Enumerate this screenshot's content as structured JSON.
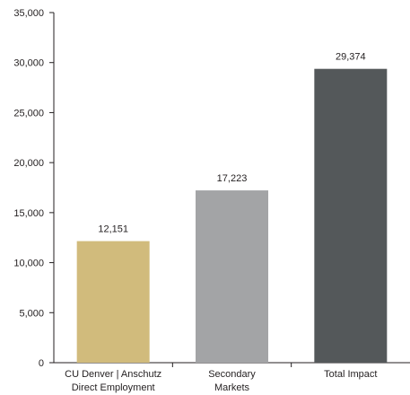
{
  "chart_data": {
    "type": "bar",
    "categories": [
      [
        "CU Denver | Anschutz",
        "Direct Employment"
      ],
      [
        "Secondary",
        "Markets"
      ],
      [
        "Total Impact"
      ]
    ],
    "values": [
      12151,
      17223,
      29374
    ],
    "data_labels": [
      "12,151",
      "17,223",
      "29,374"
    ],
    "bar_colors": [
      "#d1bb7c",
      "#a3a4a6",
      "#54585a"
    ],
    "ylim": [
      0,
      35000
    ],
    "yticks": [
      0,
      5000,
      10000,
      15000,
      20000,
      25000,
      30000,
      35000
    ],
    "ytick_labels": [
      "0",
      "5,000",
      "10,000",
      "15,000",
      "20,000",
      "25,000",
      "30,000",
      "35,000"
    ],
    "title": "",
    "xlabel": "",
    "ylabel": "",
    "grid": false,
    "legend": "none"
  }
}
